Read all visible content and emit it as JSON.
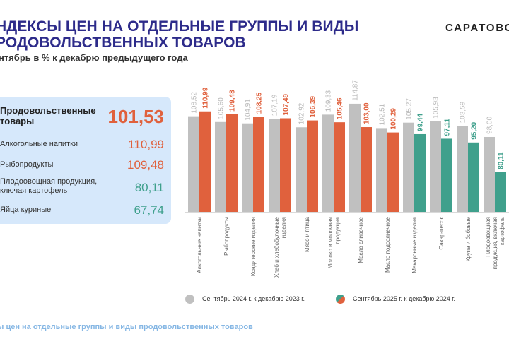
{
  "header": {
    "title_line1": "НДЕКСЫ ЦЕН НА ОТДЕЛЬНЫЕ ГРУППЫ И ВИДЫ",
    "title_line2": "РОДОВОЛЬСТВЕННЫХ ТОВАРОВ",
    "subtitle": "нтябрь в % к декабрю предыдущего года",
    "brand": "САРАТОВС"
  },
  "summary_panel": {
    "main": {
      "label_line1": "Продовольственные",
      "label_line2": "товары",
      "value": "101,53",
      "color": "#e0613d"
    },
    "items": [
      {
        "label_line1": "Алкогольные напитки",
        "label_line2": "",
        "value": "110,99",
        "color": "#e0613d"
      },
      {
        "label_line1": "Рыбопродукты",
        "label_line2": "",
        "value": "109,48",
        "color": "#e0613d"
      },
      {
        "label_line1": "Плодоовощная продукция,",
        "label_line2": "ключая картофель",
        "value": "80,11",
        "color": "#3fa08c"
      },
      {
        "label_line1": "Яйца куриные",
        "label_line2": "",
        "value": "67,74",
        "color": "#3fa08c"
      }
    ]
  },
  "colors": {
    "prev_year": "#c0c0c0",
    "increase": "#e0613d",
    "decrease": "#3fa08c",
    "title": "#2d2b8a",
    "footer": "#86b7e4"
  },
  "chart_data": {
    "type": "bar",
    "title": "",
    "xlabel": "",
    "ylabel": "",
    "ylim": [
      60,
      120
    ],
    "grid": false,
    "legend_position": "bottom",
    "categories": [
      [
        "Алкогольные напитки"
      ],
      [
        "Рыбопродукты"
      ],
      [
        "Кондитерские изделия"
      ],
      [
        "Хлеб и хлебобулочные",
        "изделия"
      ],
      [
        "Мясо и птица"
      ],
      [
        "Молоко и молочная",
        "продукция"
      ],
      [
        "Масло сливочное"
      ],
      [
        "Масло подсолнечное"
      ],
      [
        "Макаронные изделия"
      ],
      [
        "Сахар-песок"
      ],
      [
        "Крупа и бобовые"
      ],
      [
        "Плодоовощная",
        "продукция, включая",
        "картофель"
      ]
    ],
    "series": [
      {
        "name": "Сентябрь 2024 г. к декабрю  2023 г.",
        "values": [
          108.52,
          105.6,
          104.91,
          107.19,
          102.92,
          109.33,
          114.87,
          102.51,
          105.27,
          105.93,
          103.59,
          98.0
        ],
        "labels": [
          "108,52",
          "105,60",
          "104,91",
          "107,19",
          "102,92",
          "109,33",
          "114,87",
          "102,51",
          "105,27",
          "105,93",
          "103,59",
          "98,00"
        ]
      },
      {
        "name": "Сентябрь  2025 г. к декабрю  2024 г.",
        "values": [
          110.99,
          109.48,
          108.25,
          107.49,
          106.39,
          105.46,
          103.0,
          100.29,
          99.44,
          97.11,
          95.2,
          80.11
        ],
        "labels": [
          "110,99",
          "109,48",
          "108,25",
          "107,49",
          "106,39",
          "105,46",
          "103,00",
          "100,29",
          "99,44",
          "97,11",
          "95,20",
          "80,11"
        ]
      }
    ],
    "threshold_for_color": 100
  },
  "legend": {
    "item1": "Сентябрь 2024 г. к декабрю  2023 г.",
    "item2": "Сентябрь  2025 г. к декабрю  2024 г."
  },
  "footer": {
    "caption": "ы цен на отдельные группы и виды продовольственных товаров"
  }
}
